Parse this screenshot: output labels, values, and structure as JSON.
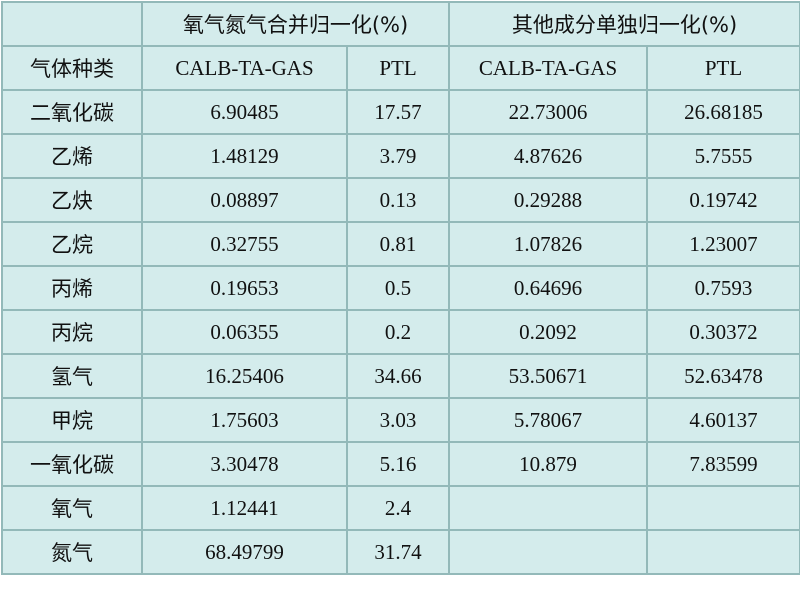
{
  "table": {
    "groups": [
      "氧气氮气合并归一化(%)",
      "其他成分单独归一化(%)"
    ],
    "columns": [
      "气体种类",
      "CALB-TA-GAS",
      "PTL",
      "CALB-TA-GAS",
      "PTL"
    ],
    "rows": [
      [
        "二氧化碳",
        "6.90485",
        "17.57",
        "22.73006",
        "26.68185"
      ],
      [
        "乙烯",
        "1.48129",
        "3.79",
        "4.87626",
        "5.7555"
      ],
      [
        "乙炔",
        "0.08897",
        "0.13",
        "0.29288",
        "0.19742"
      ],
      [
        "乙烷",
        "0.32755",
        "0.81",
        "1.07826",
        "1.23007"
      ],
      [
        "丙烯",
        "0.19653",
        "0.5",
        "0.64696",
        "0.7593"
      ],
      [
        "丙烷",
        "0.06355",
        "0.2",
        "0.2092",
        "0.30372"
      ],
      [
        "氢气",
        "16.25406",
        "34.66",
        "53.50671",
        "52.63478"
      ],
      [
        "甲烷",
        "1.75603",
        "3.03",
        "5.78067",
        "4.60137"
      ],
      [
        "一氧化碳",
        "3.30478",
        "5.16",
        "10.879",
        "7.83599"
      ],
      [
        "氧气",
        "1.12441",
        "2.4"
      ],
      [
        "氮气",
        "68.49799",
        "31.74"
      ]
    ]
  }
}
